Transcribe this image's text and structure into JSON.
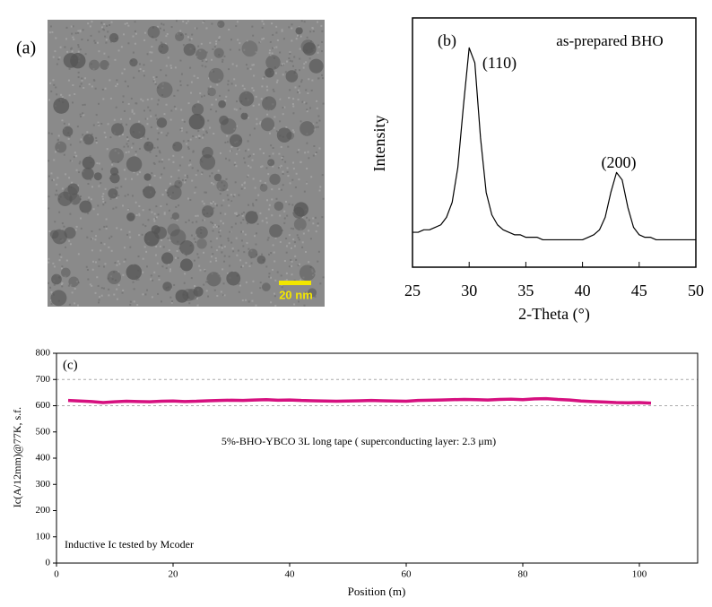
{
  "image_panel": {
    "label": "(a)",
    "scale_bar_label": "20 nm"
  },
  "chart_data": [
    {
      "type": "line",
      "xlabel": "2-Theta (°)",
      "ylabel": "Intensity",
      "annotations": [
        "(b)",
        "as-prepared BHO",
        "(110)",
        "(200)"
      ],
      "xlim": [
        25,
        50
      ],
      "xticks": [
        25,
        30,
        35,
        40,
        45,
        50
      ],
      "ylim": [
        0,
        100
      ],
      "series": [
        {
          "color": "#000000",
          "x": [
            25,
            25.5,
            26,
            26.5,
            27,
            27.5,
            28,
            28.5,
            29,
            29.5,
            30,
            30.5,
            31,
            31.5,
            32,
            32.5,
            33,
            33.5,
            34,
            34.5,
            35,
            35.5,
            36,
            36.5,
            37,
            37.5,
            38,
            38.5,
            39,
            39.5,
            40,
            40.5,
            41,
            41.5,
            42,
            42.5,
            43,
            43.5,
            44,
            44.5,
            45,
            45.5,
            46,
            46.5,
            47,
            47.5,
            48,
            48.5,
            49,
            49.5,
            50
          ],
          "values": [
            14,
            14,
            15,
            15,
            16,
            17,
            20,
            26,
            40,
            65,
            88,
            82,
            52,
            30,
            21,
            17,
            15,
            14,
            13,
            13,
            12,
            12,
            12,
            11,
            11,
            11,
            11,
            11,
            11,
            11,
            11,
            12,
            13,
            15,
            20,
            30,
            38,
            35,
            24,
            16,
            13,
            12,
            12,
            11,
            11,
            11,
            11,
            11,
            11,
            11,
            11
          ]
        }
      ]
    },
    {
      "type": "line",
      "xlabel": "Position (m)",
      "ylabel": "Ic(A/12mm)@77K, s.f.",
      "annotations": [
        "(c)",
        "5%-BHO-YBCO 3L long tape ( superconducting layer: 2.3 μm)",
        "Inductive Ic tested by Mcoder"
      ],
      "xlim": [
        0,
        110
      ],
      "xticks": [
        0,
        20,
        40,
        60,
        80,
        100
      ],
      "ylim": [
        0,
        800
      ],
      "yticks": [
        0,
        100,
        200,
        300,
        400,
        500,
        600,
        700,
        800
      ],
      "hlines": [
        600,
        700
      ],
      "series": [
        {
          "color": "#d6107f",
          "x": [
            2,
            4,
            6,
            8,
            10,
            12,
            14,
            16,
            18,
            20,
            22,
            24,
            26,
            28,
            30,
            32,
            34,
            36,
            38,
            40,
            42,
            44,
            46,
            48,
            50,
            52,
            54,
            56,
            58,
            60,
            62,
            64,
            66,
            68,
            70,
            72,
            74,
            76,
            78,
            80,
            82,
            84,
            86,
            88,
            90,
            92,
            94,
            96,
            98,
            100,
            102
          ],
          "values": [
            620,
            618,
            616,
            612,
            615,
            617,
            616,
            615,
            617,
            618,
            616,
            617,
            619,
            620,
            621,
            620,
            622,
            623,
            621,
            622,
            620,
            619,
            618,
            617,
            618,
            619,
            620,
            619,
            618,
            617,
            620,
            621,
            622,
            623,
            624,
            623,
            622,
            624,
            625,
            623,
            626,
            627,
            624,
            622,
            618,
            616,
            614,
            612,
            611,
            612,
            610
          ]
        }
      ]
    }
  ]
}
